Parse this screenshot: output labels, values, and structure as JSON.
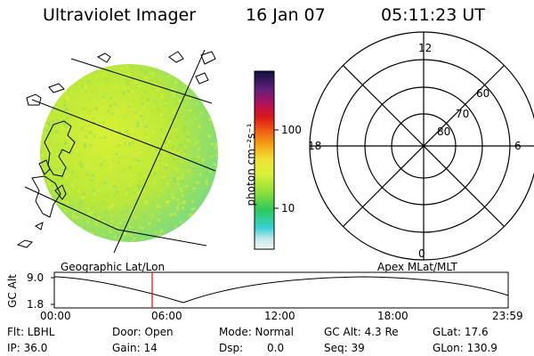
{
  "header": {
    "instrument": "Ultraviolet Imager",
    "date": "16 Jan 07",
    "time": "05:11:23 UT"
  },
  "colorbar": {
    "unit_label": "photon cm⁻²s⁻¹",
    "tick_100": "100",
    "tick_10": "10"
  },
  "polar": {
    "mlt_12": "12",
    "mlt_18": "18",
    "mlt_6": "6",
    "mlt_0": "0",
    "lat_60": "60",
    "lat_70": "70",
    "lat_80": "80"
  },
  "orbit": {
    "left_caption": "Geographic Lat/Lon",
    "right_caption": "Apex MLat/MLT",
    "axis_title": "GC Alt",
    "y_top": "9.0",
    "y_bottom": "1.8",
    "x_ticks": [
      "00:00",
      "06:00",
      "12:00",
      "18:00",
      "23:59"
    ],
    "marker_color": "#ff0000"
  },
  "info": {
    "filter": "Flt: LBHL",
    "ip": "IP: 36.0",
    "door": "Door: Open",
    "gain": "Gain: 14",
    "mode": "Mode: Normal",
    "dsp_label": "Dsp:",
    "dsp_value": "0.0",
    "gc_alt": "GC Alt: 4.3 Re",
    "seq": "Seq: 39",
    "glat": "GLat: 17.6",
    "glon": "GLon: 130.9"
  }
}
